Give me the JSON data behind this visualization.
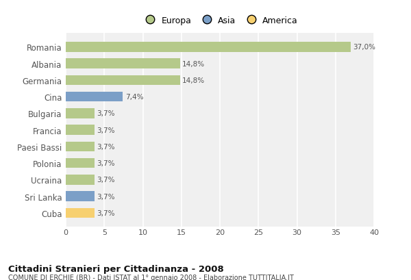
{
  "categories": [
    "Romania",
    "Albania",
    "Germania",
    "Cina",
    "Bulgaria",
    "Francia",
    "Paesi Bassi",
    "Polonia",
    "Ucraina",
    "Sri Lanka",
    "Cuba"
  ],
  "values": [
    37.0,
    14.8,
    14.8,
    7.4,
    3.7,
    3.7,
    3.7,
    3.7,
    3.7,
    3.7,
    3.7
  ],
  "labels": [
    "37,0%",
    "14,8%",
    "14,8%",
    "7,4%",
    "3,7%",
    "3,7%",
    "3,7%",
    "3,7%",
    "3,7%",
    "3,7%",
    "3,7%"
  ],
  "colors": [
    "#b5c98a",
    "#b5c98a",
    "#b5c98a",
    "#7b9fc7",
    "#b5c98a",
    "#b5c98a",
    "#b5c98a",
    "#b5c98a",
    "#b5c98a",
    "#7b9fc7",
    "#f7d070"
  ],
  "legend_labels": [
    "Europa",
    "Asia",
    "America"
  ],
  "legend_colors": [
    "#b5c98a",
    "#7b9fc7",
    "#f7d070"
  ],
  "xlim": [
    0,
    40
  ],
  "xticks": [
    0,
    5,
    10,
    15,
    20,
    25,
    30,
    35,
    40
  ],
  "title": "Cittadini Stranieri per Cittadinanza - 2008",
  "subtitle": "COMUNE DI ERCHIE (BR) - Dati ISTAT al 1° gennaio 2008 - Elaborazione TUTTITALIA.IT",
  "fig_bg_color": "#ffffff",
  "plot_bg_color": "#f0f0f0",
  "grid_color": "#ffffff",
  "bar_height": 0.6
}
